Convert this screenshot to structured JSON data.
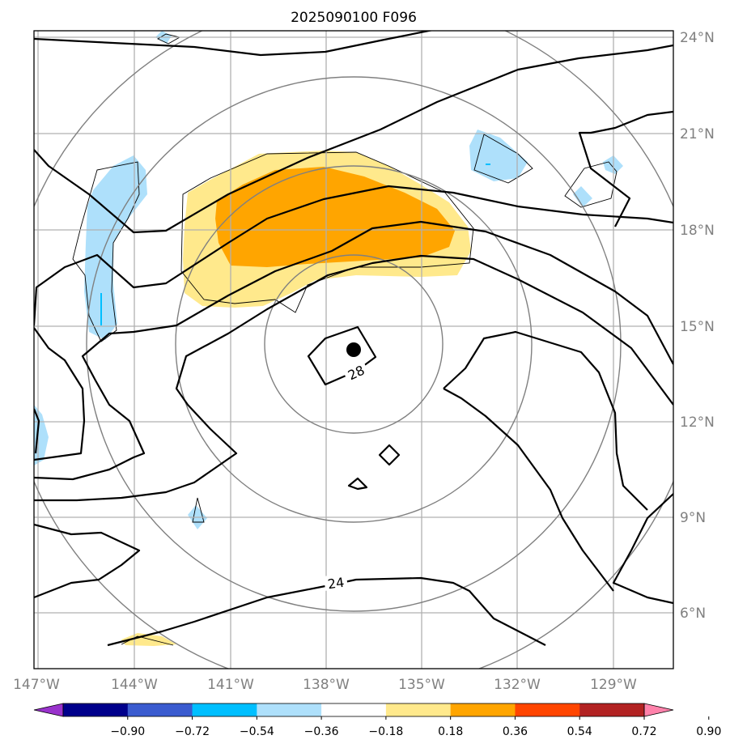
{
  "title": "2025090100 F096",
  "map": {
    "lon_range": [
      -147.2,
      -127.6
    ],
    "lat_range": [
      4.0,
      24.3
    ],
    "lon_ticks": [
      "147°W",
      "144°W",
      "141°W",
      "138°W",
      "135°W",
      "132°W",
      "129°W"
    ],
    "lat_ticks": [
      "24°N",
      "21°N",
      "18°N",
      "15°N",
      "12°N",
      "9°N",
      "6°N"
    ],
    "contour_labels": [
      "28",
      "24"
    ],
    "storm_center": {
      "lon": -136.9,
      "lat": 14.3,
      "symbol": "black-dot"
    },
    "range_rings_count": 4
  },
  "colorbar": {
    "ticks": [
      "−0.90",
      "−0.72",
      "−0.54",
      "−0.36",
      "−0.18",
      "0.18",
      "0.36",
      "0.54",
      "0.72",
      "0.90"
    ],
    "colors": [
      "#9932cc",
      "#00008b",
      "#3a5bcf",
      "#00bfff",
      "#aee0fb",
      "#ffffff",
      "#ffe98c",
      "#ffa500",
      "#ff4500",
      "#b22222",
      "#ff82ab"
    ]
  },
  "colors": {
    "pos_light": "#ffe98c",
    "pos_mid": "#ffa500",
    "neg_light": "#aee0fb",
    "contour": "#000000",
    "rings": "#808080",
    "grid": "#b0b0b0"
  }
}
